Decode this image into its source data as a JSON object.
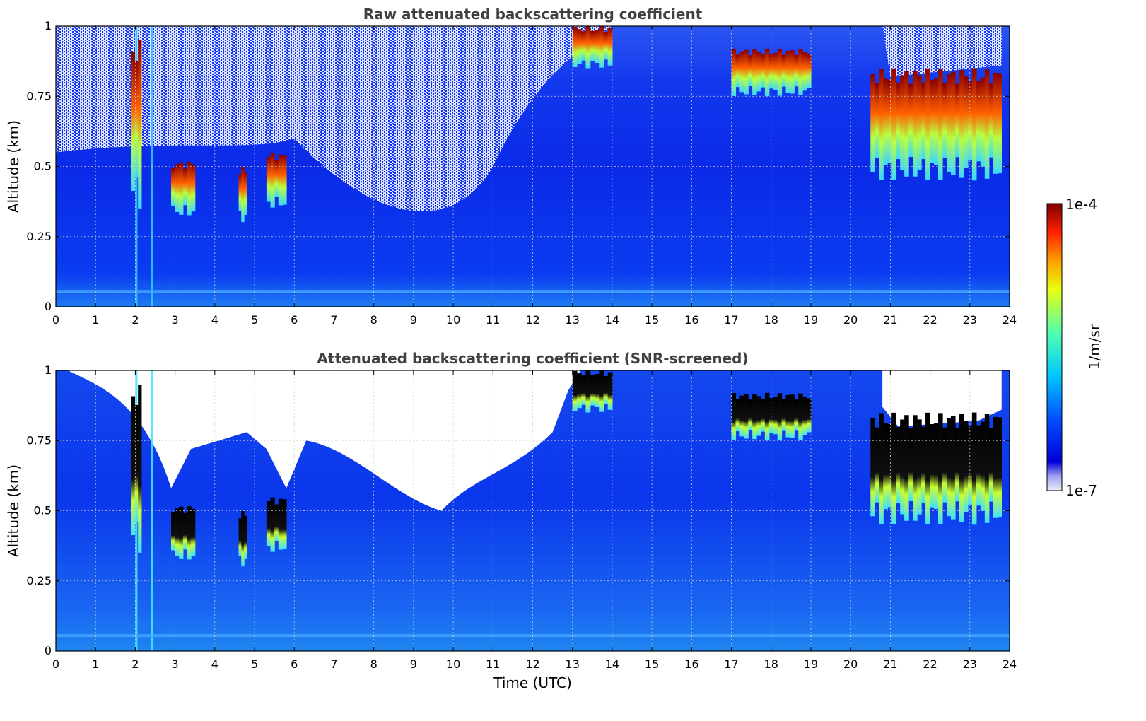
{
  "chart_data": [
    {
      "type": "heatmap",
      "title": "Raw attenuated backscattering coefficient",
      "xlabel": "",
      "ylabel": "Altitude (km)",
      "xlim": [
        0,
        24
      ],
      "ylim": [
        0,
        1
      ],
      "xticks": [
        "0",
        "1",
        "2",
        "3",
        "4",
        "5",
        "6",
        "7",
        "8",
        "9",
        "10",
        "11",
        "12",
        "13",
        "14",
        "15",
        "16",
        "17",
        "18",
        "19",
        "20",
        "21",
        "22",
        "23",
        "24"
      ],
      "yticks": [
        "0",
        "0.25",
        "0.5",
        "0.75",
        "1"
      ],
      "grid": true,
      "screened": false,
      "cloud_features": [
        {
          "x": [
            1.9,
            2.15
          ],
          "y": [
            0.35,
            0.95
          ]
        },
        {
          "x": [
            2.9,
            3.5
          ],
          "y": [
            0.32,
            0.52
          ]
        },
        {
          "x": [
            4.6,
            4.8
          ],
          "y": [
            0.3,
            0.5
          ]
        },
        {
          "x": [
            5.3,
            5.8
          ],
          "y": [
            0.35,
            0.55
          ]
        },
        {
          "x": [
            13.0,
            14.0
          ],
          "y": [
            0.85,
            1.0
          ]
        },
        {
          "x": [
            17.0,
            19.0
          ],
          "y": [
            0.75,
            0.92
          ]
        },
        {
          "x": [
            20.5,
            23.8
          ],
          "y": [
            0.45,
            0.85
          ]
        }
      ]
    },
    {
      "type": "heatmap",
      "title": "Attenuated backscattering coefficient (SNR-screened)",
      "xlabel": "Time (UTC)",
      "ylabel": "Altitude (km)",
      "xlim": [
        0,
        24
      ],
      "ylim": [
        0,
        1
      ],
      "xticks": [
        "0",
        "1",
        "2",
        "3",
        "4",
        "5",
        "6",
        "7",
        "8",
        "9",
        "10",
        "11",
        "12",
        "13",
        "14",
        "15",
        "16",
        "17",
        "18",
        "19",
        "20",
        "21",
        "22",
        "23",
        "24"
      ],
      "yticks": [
        "0",
        "0.25",
        "0.5",
        "0.75",
        "1"
      ],
      "grid": true,
      "screened": true,
      "cloud_features": [
        {
          "x": [
            1.9,
            2.15
          ],
          "y": [
            0.35,
            0.95
          ]
        },
        {
          "x": [
            2.9,
            3.5
          ],
          "y": [
            0.32,
            0.52
          ]
        },
        {
          "x": [
            4.6,
            4.8
          ],
          "y": [
            0.3,
            0.5
          ]
        },
        {
          "x": [
            5.3,
            5.8
          ],
          "y": [
            0.35,
            0.55
          ]
        },
        {
          "x": [
            13.0,
            14.0
          ],
          "y": [
            0.85,
            1.0
          ]
        },
        {
          "x": [
            17.0,
            19.0
          ],
          "y": [
            0.75,
            0.92
          ]
        },
        {
          "x": [
            20.5,
            23.8
          ],
          "y": [
            0.45,
            0.85
          ]
        }
      ]
    }
  ],
  "colorbar": {
    "label": "1/m/sr",
    "max_label": "1e-4",
    "min_label": "1e-7",
    "colormap": "jet",
    "scale": "log"
  }
}
